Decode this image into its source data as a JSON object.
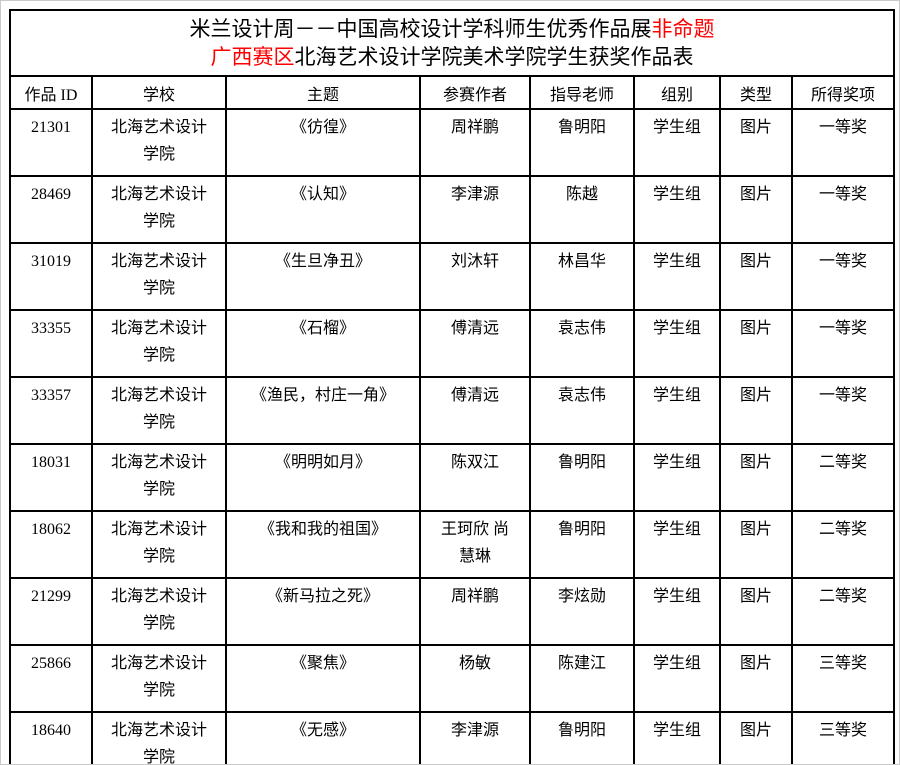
{
  "title": {
    "line1_black": "米兰设计周－－中国高校设计学科师生优秀作品展",
    "line1_red": "非命题",
    "line2_red": "广西赛区",
    "line2_black": "北海艺术设计学院美术学院学生获奖作品表"
  },
  "colors": {
    "accent_red": "#ff0000",
    "border": "#000000",
    "text": "#000000",
    "background": "#ffffff"
  },
  "table": {
    "headers": [
      "作品 ID",
      "学校",
      "主题",
      "参赛作者",
      "指导老师",
      "组别",
      "类型",
      "所得奖项"
    ],
    "rows": [
      [
        "21301",
        "北海艺术设计\n学院",
        "《彷徨》",
        "周祥鹏",
        "鲁明阳",
        "学生组",
        "图片",
        "一等奖"
      ],
      [
        "28469",
        "北海艺术设计\n学院",
        "《认知》",
        "李津源",
        "陈越",
        "学生组",
        "图片",
        "一等奖"
      ],
      [
        "31019",
        "北海艺术设计\n学院",
        "《生旦净丑》",
        "刘沐轩",
        "林昌华",
        "学生组",
        "图片",
        "一等奖"
      ],
      [
        "33355",
        "北海艺术设计\n学院",
        "《石榴》",
        "傅清远",
        "袁志伟",
        "学生组",
        "图片",
        "一等奖"
      ],
      [
        "33357",
        "北海艺术设计\n学院",
        "《渔民，村庄一角》",
        "傅清远",
        "袁志伟",
        "学生组",
        "图片",
        "一等奖"
      ],
      [
        "18031",
        "北海艺术设计\n学院",
        "《明明如月》",
        "陈双江",
        "鲁明阳",
        "学生组",
        "图片",
        "二等奖"
      ],
      [
        "18062",
        "北海艺术设计\n学院",
        "《我和我的祖国》",
        "王珂欣 尚\n慧琳",
        "鲁明阳",
        "学生组",
        "图片",
        "二等奖"
      ],
      [
        "21299",
        "北海艺术设计\n学院",
        "《新马拉之死》",
        "周祥鹏",
        "李炫勋",
        "学生组",
        "图片",
        "二等奖"
      ],
      [
        "25866",
        "北海艺术设计\n学院",
        "《聚焦》",
        "杨敏",
        "陈建江",
        "学生组",
        "图片",
        "三等奖"
      ],
      [
        "18640",
        "北海艺术设计\n学院",
        "《无感》",
        "李津源",
        "鲁明阳",
        "学生组",
        "图片",
        "三等奖"
      ]
    ]
  }
}
